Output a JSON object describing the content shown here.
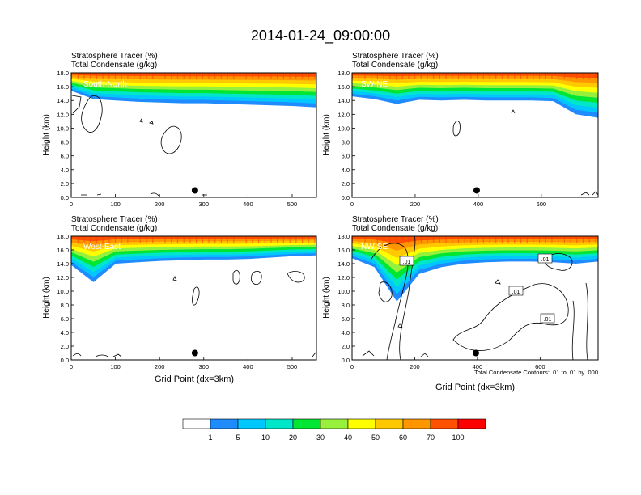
{
  "figure": {
    "title": "2014-01-24_09:00:00",
    "field_label": "Stratosphere Tracer   (%)",
    "contour_label": "Total Condensate   (g/kg)",
    "ylabel": "Height (km)",
    "xlabel": "Grid Point (dx=3km)",
    "contour_note": "Total Condensate Contours: .01 to .01 by .000"
  },
  "colorbar": {
    "levels": [
      "1",
      "5",
      "10",
      "20",
      "30",
      "40",
      "50",
      "60",
      "70",
      "100"
    ],
    "colors": [
      "#ffffff",
      "#1e8cff",
      "#00c8ff",
      "#00e6c8",
      "#00e632",
      "#96f03c",
      "#ffff00",
      "#ffc800",
      "#ff9600",
      "#ff5000",
      "#ff0000"
    ]
  },
  "chart_data": [
    {
      "type": "heatmap",
      "panel_label": "South-North",
      "ylim": [
        0,
        18
      ],
      "yticks": [
        "0.0",
        "2.0",
        "4.0",
        "6.0",
        "8.0",
        "10.0",
        "12.0",
        "14.0",
        "16.0",
        "18.0"
      ],
      "xlim": [
        0,
        555
      ],
      "xticks": [
        0,
        100,
        200,
        300,
        400,
        500
      ],
      "marker_x": 280,
      "marker_height": 1.0,
      "tracer_base_km": [
        15.4,
        14.2,
        14.0,
        13.8,
        13.7,
        13.6,
        13.6,
        13.5,
        13.4,
        13.3,
        13.2,
        13.0
      ],
      "contour_labels": []
    },
    {
      "type": "heatmap",
      "panel_label": "SW-NE",
      "ylim": [
        0,
        18
      ],
      "yticks": [
        "0.0",
        "2.0",
        "4.0",
        "6.0",
        "8.0",
        "10.0",
        "12.0",
        "14.0",
        "16.0",
        "18.0"
      ],
      "xlim": [
        0,
        780
      ],
      "xticks": [
        0,
        200,
        400,
        600
      ],
      "marker_x": 395,
      "marker_height": 1.0,
      "tracer_base_km": [
        14.6,
        14.2,
        13.5,
        14.1,
        14.0,
        14.1,
        14.0,
        14.0,
        14.0,
        13.9,
        12.0,
        11.5
      ],
      "contour_labels": []
    },
    {
      "type": "heatmap",
      "panel_label": "West-East",
      "ylim": [
        0,
        18
      ],
      "yticks": [
        "0.0",
        "2.0",
        "4.0",
        "6.0",
        "8.0",
        "10.0",
        "12.0",
        "14.0",
        "16.0",
        "18.0"
      ],
      "xlim": [
        0,
        555
      ],
      "xticks": [
        0,
        100,
        200,
        300,
        400,
        500
      ],
      "marker_x": 280,
      "marker_height": 1.0,
      "tracer_base_km": [
        13.8,
        11.3,
        14.0,
        14.2,
        14.4,
        14.5,
        14.6,
        14.6,
        14.7,
        14.9,
        15.1,
        15.2
      ],
      "contour_labels": []
    },
    {
      "type": "heatmap",
      "panel_label": "NW-SE",
      "ylim": [
        0,
        18
      ],
      "yticks": [
        "0.0",
        "2.0",
        "4.0",
        "6.0",
        "8.0",
        "10.0",
        "12.0",
        "14.0",
        "16.0",
        "18.0"
      ],
      "xlim": [
        0,
        785
      ],
      "xticks": [
        0,
        200,
        400,
        600
      ],
      "marker_x": 395,
      "marker_height": 1.0,
      "tracer_base_km": [
        14.8,
        13.5,
        8.5,
        12.5,
        13.5,
        14.0,
        14.2,
        14.3,
        14.3,
        14.2,
        14.0,
        14.3
      ],
      "contour_labels": [
        ".01",
        ".01",
        ".01",
        ".01"
      ]
    }
  ]
}
